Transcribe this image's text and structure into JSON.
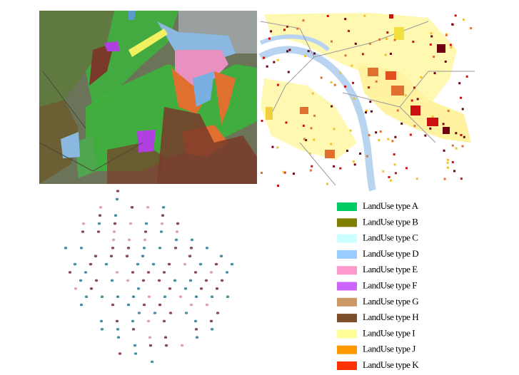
{
  "legend": {
    "items": [
      {
        "label": "LandUse type A",
        "color": "#00cc66"
      },
      {
        "label": "LandUse type B",
        "color": "#808000"
      },
      {
        "label": "LandUse type C",
        "color": "#ccffff"
      },
      {
        "label": "LandUse type D",
        "color": "#99ccff"
      },
      {
        "label": "LandUse type E",
        "color": "#ff99cc"
      },
      {
        "label": "LandUse type F",
        "color": "#cc66ff"
      },
      {
        "label": "LandUse type G",
        "color": "#cc9966"
      },
      {
        "label": "LandUse type H",
        "color": "#7b4f2c"
      },
      {
        "label": "LandUse type I",
        "color": "#ffff99"
      },
      {
        "label": "LandUse type J",
        "color": "#ff9900"
      },
      {
        "label": "LandUse type K",
        "color": "#ff3300"
      }
    ]
  }
}
